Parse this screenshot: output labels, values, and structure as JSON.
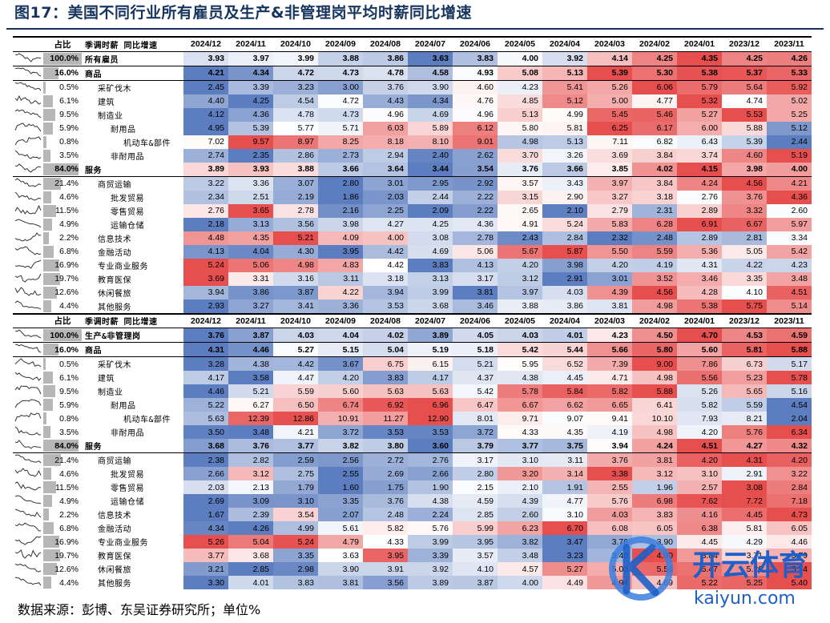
{
  "title": "图17：美国不同行业所有雇员及生产&非管理岗平均时薪同比增速",
  "source": "数据来源：彭博、东吴证券研究所；单位%",
  "watermark": {
    "brand": "开云体育",
    "url": "kaiyun.com"
  },
  "chart_data": {
    "type": "table",
    "columns": [
      "2024/12",
      "2024/11",
      "2024/10",
      "2024/09",
      "2024/08",
      "2024/07",
      "2024/06",
      "2024/05",
      "2024/04",
      "2024/03",
      "2024/02",
      "2024/01",
      "2023/12",
      "2023/11"
    ],
    "color_scale": {
      "low": "#4a6fb8",
      "mid": "#ffffff",
      "high": "#e43a3a"
    },
    "panels": [
      {
        "header": {
          "share": "占比",
          "name": "季调时薪 同比增速"
        },
        "rows": [
          {
            "share": "100.0%",
            "name": "所有雇员",
            "level": 0,
            "bold": true,
            "values": [
              3.93,
              3.97,
              3.99,
              3.88,
              3.86,
              3.63,
              3.83,
              4.0,
              3.92,
              4.14,
              4.25,
              4.35,
              4.25,
              4.26
            ]
          },
          {
            "share": "16.0%",
            "name": "商品",
            "level": 0,
            "bold": true,
            "values": [
              4.21,
              4.34,
              4.72,
              4.73,
              4.78,
              4.58,
              4.93,
              5.08,
              5.13,
              5.39,
              5.3,
              5.38,
              5.37,
              5.33
            ]
          },
          {
            "share": "0.5%",
            "name": "采矿伐木",
            "level": 1,
            "values": [
              2.45,
              3.39,
              3.23,
              3.0,
              3.76,
              3.9,
              4.6,
              4.23,
              5.41,
              5.26,
              6.06,
              5.79,
              5.64,
              5.92
            ]
          },
          {
            "share": "6.1%",
            "name": "建筑",
            "level": 1,
            "values": [
              4.4,
              4.25,
              4.54,
              4.72,
              4.43,
              4.34,
              4.76,
              4.85,
              5.12,
              5.0,
              4.77,
              5.32,
              4.74,
              5.02
            ]
          },
          {
            "share": "9.5%",
            "name": "制造业",
            "level": 1,
            "values": [
              4.12,
              4.36,
              4.78,
              4.73,
              4.96,
              4.69,
              4.96,
              5.13,
              4.99,
              5.45,
              5.46,
              5.27,
              5.53,
              5.25
            ]
          },
          {
            "share": "5.9%",
            "name": "耐用品",
            "level": 2,
            "values": [
              4.95,
              5.39,
              5.77,
              5.71,
              6.03,
              5.89,
              6.12,
              5.8,
              5.81,
              6.25,
              6.17,
              6.0,
              5.88,
              5.12
            ]
          },
          {
            "share": "0.8%",
            "name": "机动车&部件",
            "level": 3,
            "values": [
              7.02,
              9.57,
              8.97,
              8.25,
              8.18,
              8.1,
              9.01,
              4.98,
              5.13,
              7.11,
              6.82,
              6.43,
              5.39,
              2.44
            ]
          },
          {
            "share": "3.5%",
            "name": "非耐用品",
            "level": 2,
            "values": [
              2.74,
              2.35,
              2.86,
              2.73,
              2.94,
              2.4,
              2.62,
              3.7,
              3.26,
              3.69,
              3.84,
              3.74,
              4.6,
              5.19
            ]
          },
          {
            "share": "84.0%",
            "name": "服务",
            "level": 0,
            "bold": true,
            "values": [
              3.89,
              3.93,
              3.88,
              3.66,
              3.64,
              3.44,
              3.54,
              3.76,
              3.66,
              3.85,
              4.02,
              4.15,
              3.98,
              4.0
            ]
          },
          {
            "share": "21.4%",
            "name": "商贸运输",
            "level": 1,
            "values": [
              3.22,
              3.36,
              3.07,
              2.8,
              3.01,
              2.95,
              2.92,
              3.57,
              3.43,
              3.97,
              3.84,
              4.24,
              4.56,
              4.21
            ]
          },
          {
            "share": "4.6%",
            "name": "批发贸易",
            "level": 2,
            "values": [
              2.34,
              2.51,
              2.19,
              1.86,
              2.03,
              2.44,
              2.22,
              3.15,
              2.9,
              3.27,
              3.18,
              2.76,
              3.76,
              4.36
            ]
          },
          {
            "share": "11.5%",
            "name": "零售贸易",
            "level": 2,
            "values": [
              2.76,
              3.65,
              2.78,
              2.16,
              2.25,
              2.09,
              2.22,
              2.65,
              2.1,
              2.79,
              2.31,
              2.89,
              3.32,
              2.6
            ]
          },
          {
            "share": "4.9%",
            "name": "运输仓储",
            "level": 2,
            "values": [
              2.18,
              3.13,
              3.56,
              3.98,
              4.27,
              4.25,
              4.36,
              4.91,
              5.24,
              5.83,
              6.28,
              6.91,
              6.67,
              5.97
            ]
          },
          {
            "share": "2.2%",
            "name": "信息技术",
            "level": 1,
            "values": [
              4.48,
              4.35,
              5.21,
              4.09,
              4.0,
              3.08,
              2.78,
              2.43,
              2.84,
              2.32,
              2.48,
              2.89,
              2.81,
              3.34
            ]
          },
          {
            "share": "6.8%",
            "name": "金融活动",
            "level": 1,
            "values": [
              4.13,
              4.04,
              4.3,
              3.95,
              4.42,
              4.69,
              5.06,
              5.67,
              5.87,
              5.5,
              5.59,
              5.36,
              5.05,
              5.42
            ]
          },
          {
            "share": "16.9%",
            "name": "专业商业服务",
            "level": 1,
            "values": [
              5.24,
              5.06,
              4.98,
              4.83,
              4.42,
              3.83,
              4.13,
              4.2,
              3.98,
              4.2,
              4.19,
              4.31,
              4.22,
              4.23
            ]
          },
          {
            "share": "19.7%",
            "name": "教育医保",
            "level": 1,
            "values": [
              3.69,
              3.31,
              3.16,
              3.11,
              3.18,
              3.13,
              3.17,
              3.12,
              2.91,
              3.01,
              3.52,
              3.46,
              3.35,
              3.48
            ]
          },
          {
            "share": "12.6%",
            "name": "休闲餐旅",
            "level": 1,
            "values": [
              3.94,
              3.86,
              3.87,
              4.22,
              3.94,
              3.99,
              3.81,
              3.97,
              4.03,
              4.39,
              4.56,
              4.28,
              4.1,
              4.51
            ]
          },
          {
            "share": "4.4%",
            "name": "其他服务",
            "level": 1,
            "values": [
              2.93,
              3.27,
              3.41,
              3.36,
              3.53,
              3.68,
              3.46,
              3.88,
              3.86,
              3.81,
              4.98,
              5.38,
              5.75,
              5.14
            ]
          }
        ]
      },
      {
        "header": {
          "share": "占比",
          "name": "季调时薪 同比增速"
        },
        "rows": [
          {
            "share": "100.0%",
            "name": "生产&非管理岗",
            "level": 0,
            "bold": true,
            "values": [
              3.76,
              3.87,
              4.03,
              4.04,
              4.02,
              3.89,
              4.05,
              4.03,
              4.01,
              4.23,
              4.5,
              4.7,
              4.53,
              4.59
            ]
          },
          {
            "share": "16.0%",
            "name": "商品",
            "level": 0,
            "bold": true,
            "values": [
              4.31,
              4.46,
              5.27,
              5.15,
              5.04,
              5.19,
              5.18,
              5.42,
              5.44,
              5.66,
              5.8,
              5.6,
              5.81,
              5.88
            ]
          },
          {
            "share": "0.5%",
            "name": "采矿伐木",
            "level": 1,
            "values": [
              3.28,
              4.38,
              4.42,
              3.67,
              6.75,
              6.15,
              5.21,
              5.95,
              6.52,
              7.39,
              9.0,
              7.86,
              6.73,
              5.17
            ]
          },
          {
            "share": "6.1%",
            "name": "建筑",
            "level": 1,
            "values": [
              4.17,
              3.58,
              4.47,
              4.2,
              3.83,
              4.17,
              4.37,
              4.38,
              4.45,
              4.71,
              4.98,
              5.56,
              5.23,
              5.78
            ]
          },
          {
            "share": "9.5%",
            "name": "制造业",
            "level": 1,
            "values": [
              4.46,
              5.21,
              5.59,
              5.6,
              5.63,
              5.63,
              5.42,
              5.78,
              5.84,
              5.82,
              5.88,
              5.26,
              5.65,
              5.16
            ]
          },
          {
            "share": "5.9%",
            "name": "耐用品",
            "level": 2,
            "values": [
              5.22,
              6.27,
              6.5,
              6.74,
              6.92,
              6.96,
              6.47,
              6.67,
              6.62,
              6.65,
              6.41,
              5.82,
              5.59,
              4.54
            ]
          },
          {
            "share": "0.8%",
            "name": "机动车&部件",
            "level": 3,
            "values": [
              5.63,
              12.39,
              12.86,
              10.91,
              11.27,
              12.9,
              8.01,
              9.71,
              9.07,
              9.41,
              10.1,
              7.93,
              8.21,
              2.04
            ]
          },
          {
            "share": "3.5%",
            "name": "非耐用品",
            "level": 2,
            "values": [
              3.5,
              3.48,
              4.21,
              3.72,
              3.53,
              3.53,
              3.72,
              4.33,
              4.35,
              4.19,
              4.98,
              4.2,
              5.76,
              6.34
            ]
          },
          {
            "share": "84.0%",
            "name": "服务",
            "level": 0,
            "bold": true,
            "values": [
              3.68,
              3.76,
              3.77,
              3.82,
              3.8,
              3.6,
              3.79,
              3.77,
              3.75,
              3.94,
              4.24,
              4.51,
              4.27,
              4.32
            ]
          },
          {
            "share": "21.4%",
            "name": "商贸运输",
            "level": 1,
            "values": [
              2.38,
              2.82,
              2.59,
              2.56,
              2.72,
              2.76,
              3.17,
              3.1,
              3.11,
              3.76,
              3.81,
              4.2,
              4.31,
              4.2
            ]
          },
          {
            "share": "4.6%",
            "name": "批发贸易",
            "level": 2,
            "values": [
              2.66,
              3.12,
              2.75,
              2.55,
              2.69,
              2.66,
              2.8,
              3.2,
              3.14,
              3.38,
              3.12,
              3.1,
              2.91,
              3.22
            ]
          },
          {
            "share": "11.5%",
            "name": "零售贸易",
            "level": 2,
            "values": [
              2.03,
              2.13,
              1.79,
              1.6,
              1.75,
              1.9,
              2.15,
              2.1,
              1.91,
              2.55,
              1.96,
              2.57,
              3.08,
              2.84
            ]
          },
          {
            "share": "4.9%",
            "name": "运输仓储",
            "level": 2,
            "values": [
              2.69,
              3.09,
              3.1,
              3.35,
              3.76,
              4.38,
              4.59,
              4.39,
              4.77,
              5.76,
              6.98,
              7.62,
              7.72,
              7.18
            ]
          },
          {
            "share": "2.2%",
            "name": "信息技术",
            "level": 1,
            "values": [
              1.67,
              2.39,
              3.54,
              2.07,
              2.48,
              2.24,
              2.85,
              2.6,
              3.1,
              4.03,
              3.83,
              4.16,
              4.45,
              4.73
            ]
          },
          {
            "share": "6.8%",
            "name": "金融活动",
            "level": 1,
            "values": [
              4.34,
              4.26,
              4.99,
              5.61,
              5.82,
              5.76,
              5.99,
              6.23,
              6.7,
              6.08,
              6.05,
              6.38,
              5.81,
              6.05
            ]
          },
          {
            "share": "16.9%",
            "name": "专业商业服务",
            "level": 1,
            "values": [
              5.26,
              5.04,
              5.24,
              4.79,
              4.33,
              3.99,
              3.95,
              3.82,
              3.47,
              3.76,
              3.9,
              4.45,
              4.29,
              4.46
            ]
          },
          {
            "share": "19.7%",
            "name": "教育医保",
            "level": 1,
            "values": [
              3.77,
              3.68,
              3.35,
              3.63,
              3.95,
              3.39,
              3.57,
              3.48,
              3.23,
              3.4,
              4.0,
              3.84,
              3.71,
              3.79
            ]
          },
          {
            "share": "12.6%",
            "name": "休闲餐旅",
            "level": 1,
            "values": [
              3.21,
              2.85,
              2.98,
              3.9,
              3.91,
              3.92,
              4.1,
              4.57,
              5.27,
              5.03,
              5.54,
              5.47,
              5.26,
              5.74
            ]
          },
          {
            "share": "4.4%",
            "name": "其他服务",
            "level": 1,
            "values": [
              3.3,
              4.01,
              3.83,
              3.81,
              3.56,
              3.89,
              3.87,
              4.0,
              4.49,
              4.94,
              4.69,
              5.22,
              5.25,
              5.4
            ]
          }
        ]
      }
    ]
  }
}
